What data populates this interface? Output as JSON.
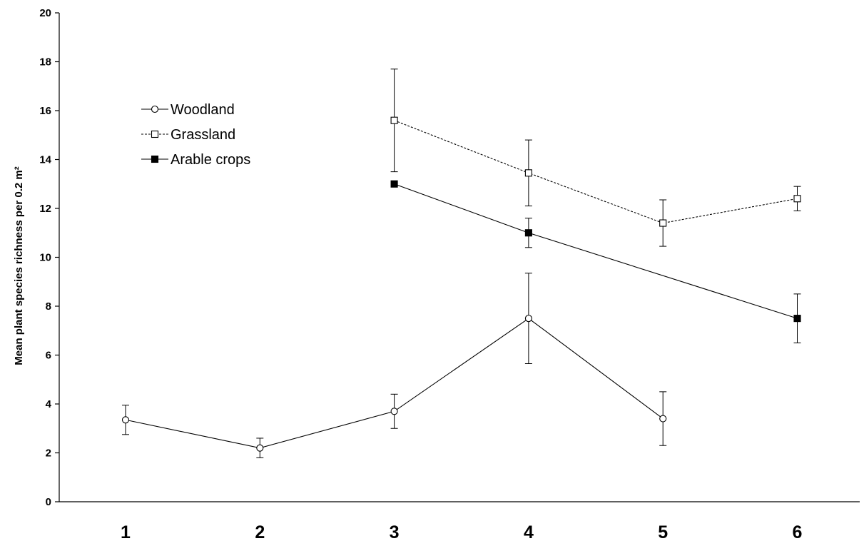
{
  "chart_data": {
    "type": "line",
    "title": "",
    "xlabel": "",
    "ylabel": "Mean plant species richness per 0.2 m²",
    "categories": [
      "1",
      "2",
      "3",
      "4",
      "5",
      "6"
    ],
    "ylim": [
      0,
      20
    ],
    "yticks": [
      0,
      2,
      4,
      6,
      8,
      10,
      12,
      14,
      16,
      18,
      20
    ],
    "grid": false,
    "legend": "upper-left",
    "series": [
      {
        "name": "Woodland",
        "marker": "circle-open",
        "line": "solid",
        "values": [
          3.35,
          2.2,
          3.7,
          7.5,
          3.4,
          null
        ],
        "error": [
          0.6,
          0.4,
          0.7,
          1.85,
          1.1,
          null
        ]
      },
      {
        "name": "Grassland",
        "marker": "square-open",
        "line": "dashed",
        "values": [
          null,
          null,
          15.6,
          13.45,
          11.4,
          12.4
        ],
        "error": [
          null,
          null,
          2.1,
          1.35,
          0.95,
          0.5
        ]
      },
      {
        "name": "Arable crops",
        "marker": "square-filled",
        "line": "solid",
        "values": [
          null,
          null,
          13.0,
          11.0,
          null,
          7.5
        ],
        "error": [
          null,
          null,
          0,
          0.6,
          null,
          1.0
        ]
      }
    ]
  }
}
